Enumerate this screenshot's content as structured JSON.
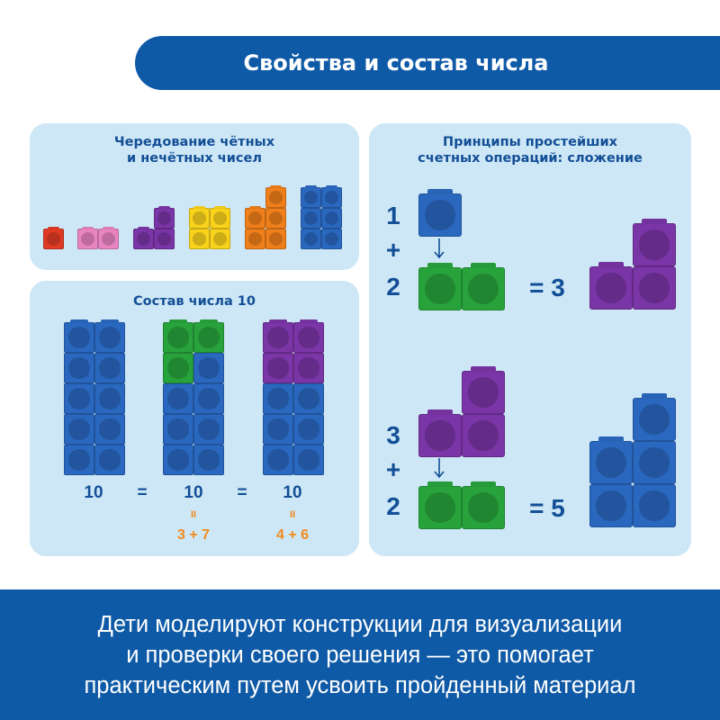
{
  "header": {
    "title": "Свойства и состав числа"
  },
  "panels": {
    "alternation": {
      "title_line1": "Чередование чётных",
      "title_line2": "и нечётных чисел"
    },
    "composition": {
      "title": "Состав числа 10",
      "eq": [
        "10",
        "=",
        "10",
        "=",
        "10"
      ],
      "breakdown1_sign": "II",
      "breakdown1": "3 + 7",
      "breakdown2_sign": "II",
      "breakdown2": "4 + 6"
    },
    "addition": {
      "title_line1": "Принципы простейших",
      "title_line2": "счетных операций: сложение",
      "example1": {
        "a": "1",
        "plus": "+",
        "b": "2",
        "result": "= 3"
      },
      "example2": {
        "a": "3",
        "plus": "+",
        "b": "2",
        "result": "= 5"
      }
    }
  },
  "colors": {
    "red": "#e03a25",
    "pink": "#e884c2",
    "purple": "#7a35a6",
    "yellow": "#f9d21c",
    "orange": "#ef7f1a",
    "blue": "#2a68c0",
    "green": "#28a33c",
    "accent": "#0f5aa6",
    "text_blue": "#134f96",
    "panel": "#cde7f6",
    "orange_text": "#f08a1d"
  },
  "footer": {
    "line1": "Дети моделируют конструкции для визуализации",
    "line2": "и проверки своего решения — это помогает",
    "line3": "практическим путем усвоить пройденный материал"
  }
}
